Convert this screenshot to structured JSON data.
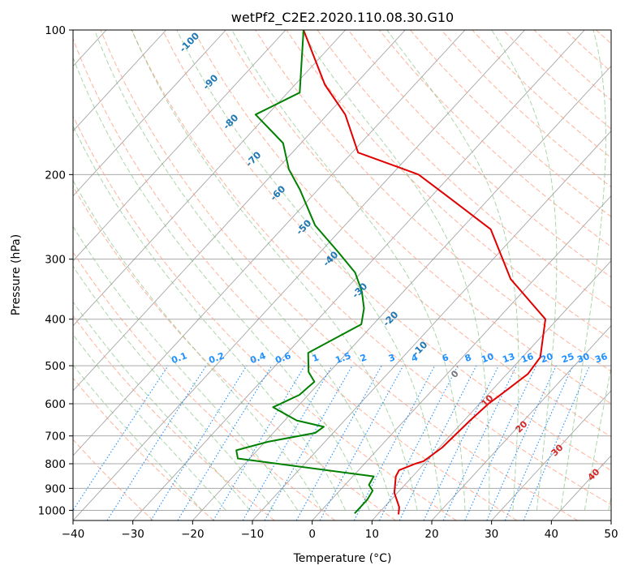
{
  "chart_data": {
    "type": "line",
    "title": "wetPf2_C2E2.2020.110.08.30.G10",
    "xlabel": "Temperature (°C)",
    "ylabel": "Pressure (hPa)",
    "xlim": [
      -40,
      50
    ],
    "ylim": [
      1050,
      100
    ],
    "y_scale": "log",
    "skew": "skew-T log-P",
    "grid": true,
    "x_ticks": [
      -40,
      -30,
      -20,
      -10,
      0,
      10,
      20,
      30,
      40,
      50
    ],
    "y_ticks": [
      100,
      200,
      300,
      400,
      500,
      600,
      700,
      800,
      900,
      1000
    ],
    "series": [
      {
        "color": "#e00000",
        "x": [
          13.5,
          12.5,
          9.5,
          7.2,
          6.8,
          8.5,
          9.5,
          10.5,
          11.0,
          11.5,
          12.5,
          13.5,
          13.0,
          8.0,
          -4.0,
          -15.0,
          -28.0,
          -35.5,
          -49.0,
          -57.0,
          -65.0,
          -77.0
        ],
        "y": [
          1020,
          985,
          920,
          850,
          825,
          800,
          790,
          740,
          650,
          600,
          560,
          520,
          480,
          400,
          330,
          260,
          220,
          200,
          180,
          150,
          130,
          100
        ]
      },
      {
        "color": "#008000",
        "x": [
          6.0,
          6.0,
          5.5,
          4.0,
          3.5,
          -22.0,
          -23.5,
          -19.5,
          -13.0,
          -12.5,
          -18.0,
          -24.0,
          -21.5,
          -21.0,
          -23.5,
          -26.5,
          -22.0,
          -24.0,
          -27.0,
          -31.0,
          -37.0,
          -45.0,
          -53.0,
          -58.0,
          -63.0,
          -72.0,
          -68.0,
          -77.0
        ],
        "y": [
          1015,
          950,
          910,
          885,
          850,
          780,
          750,
          720,
          690,
          670,
          650,
          610,
          575,
          540,
          515,
          470,
          410,
          380,
          350,
          320,
          290,
          255,
          215,
          195,
          172,
          150,
          135,
          100
        ]
      }
    ],
    "dry_adiabat_labels": [
      "-100",
      "-90",
      "-80",
      "-70",
      "-60",
      "-50",
      "-40",
      "-30",
      "-20",
      "-10"
    ],
    "mixing_ratio_labels": [
      "0.1",
      "0.2",
      "0.4",
      "0.6",
      "1",
      "1.5",
      "2",
      "3",
      "4",
      "6",
      "8",
      "10",
      "13",
      "16",
      "20",
      "25",
      "30",
      "36"
    ],
    "moist_adiabat_labels": [
      "0",
      "10",
      "20",
      "30",
      "40"
    ],
    "colors": {
      "temperature": "#e00000",
      "dewpoint": "#008000",
      "dry_adiabat": "#ff9f80",
      "moist_adiabat": "#7fbf7f",
      "mixing_ratio": "#1e90ff",
      "isotherm": "#888888",
      "isobar": "#aaaaaa"
    }
  }
}
